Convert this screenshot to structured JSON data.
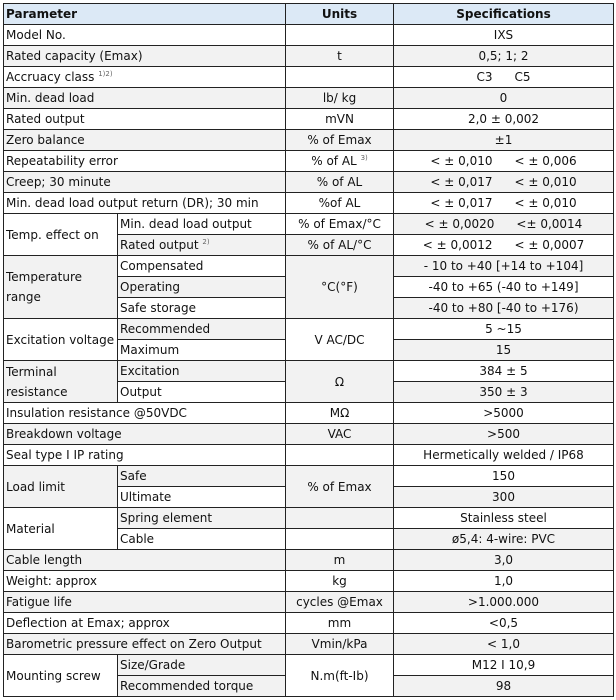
{
  "header": {
    "parameter": "Parameter",
    "units": "Units",
    "specifications": "Specifications"
  },
  "rows": {
    "model": {
      "param": "Model No.",
      "units": "",
      "spec": "IXS"
    },
    "capacity": {
      "param": "Rated capacity (Emax)",
      "units": "t",
      "spec": "0,5; 1;  2"
    },
    "accuracy": {
      "param": "Accruacy class",
      "sup": "1)2)",
      "units": "",
      "spec_c3": "C3",
      "spec_c5": "C5"
    },
    "min_dead_load": {
      "param": "Min. dead load",
      "units": "lb/ kg",
      "spec": "0"
    },
    "rated_output": {
      "param": "Rated output",
      "units": "mVN",
      "spec": "2,0 ± 0,002"
    },
    "zero_balance": {
      "param": "Zero balance",
      "units": "% of Emax",
      "spec": "±1"
    },
    "repeatability": {
      "param": "Repeatability error",
      "units": "% of AL",
      "units_sup": "3)",
      "spec_c3": "< ± 0,010",
      "spec_c5": "< ± 0,006"
    },
    "creep": {
      "param": "Creep; 30 minute",
      "units": "% of AL",
      "spec_c3": "< ± 0,017",
      "spec_c5": "< ± 0,010"
    },
    "dr": {
      "param": "Min. dead load output return (DR); 30 min",
      "units": "%of AL",
      "spec_c3": "< ± 0,017",
      "spec_c5": "< ± 0,010"
    },
    "temp_effect": {
      "param": "Temp. effect on",
      "sub1": {
        "label": "Min. dead load output",
        "units": "% of Emax/°C",
        "spec_c3": "< ±  0,0020",
        "spec_c5": "<±  0,0014"
      },
      "sub2": {
        "label": "Rated output",
        "sup": "2)",
        "units": "% of AL/°C",
        "spec_c3": "< ±  0,0012",
        "spec_c5": "< ± 0,0007"
      }
    },
    "temp_range": {
      "param": "Temperature range",
      "units": "°C(°F)",
      "sub1": {
        "label": "Compensated",
        "spec": "- 10 to +40 [+14 to +104]"
      },
      "sub2": {
        "label": "Operating",
        "spec": "-40 to +65 (-40 to +149]"
      },
      "sub3": {
        "label": "Safe storage",
        "spec": "-40 to +80 [-40 to +176)"
      }
    },
    "excitation_voltage": {
      "param": "Excitation voltage",
      "units": "V AC/DC",
      "sub1": {
        "label": "Recommended",
        "spec": "5 ~15"
      },
      "sub2": {
        "label": "Maximum",
        "spec": "15"
      }
    },
    "terminal_resistance": {
      "param": "Terminal resistance",
      "units": "Ω",
      "sub1": {
        "label": "Excitation",
        "spec": "384 ± 5"
      },
      "sub2": {
        "label": "Output",
        "spec": "350 ± 3"
      }
    },
    "insulation": {
      "param": "Insulation resistance @50VDC",
      "units": "MΩ",
      "spec": ">5000"
    },
    "breakdown": {
      "param": "Breakdown voltage",
      "units": "VAC",
      "spec": ">500"
    },
    "seal": {
      "param": "Seal type I IP rating",
      "units": "",
      "spec": "Hermetically welded / IP68"
    },
    "load_limit": {
      "param": "Load limit",
      "units": "% of Emax",
      "sub1": {
        "label": "Safe",
        "spec": "150"
      },
      "sub2": {
        "label": "Ultimate",
        "spec": "300"
      }
    },
    "material": {
      "param": "Material",
      "sub1": {
        "label": "Spring element",
        "units": "",
        "spec": "Stainless steel"
      },
      "sub2": {
        "label": "Cable",
        "units": "",
        "spec": "ø5,4: 4-wire: PVC"
      }
    },
    "cable_length": {
      "param": "Cable length",
      "units": "m",
      "spec": "3,0"
    },
    "weight": {
      "param": "Weight: approx",
      "units": "kg",
      "spec": "1,0"
    },
    "fatigue": {
      "param": "Fatigue life",
      "units": "cycles @Emax",
      "spec": ">1.000.000"
    },
    "deflection": {
      "param": "Deflection at Emax; approx",
      "units": "mm",
      "spec": "<0,5"
    },
    "barometric": {
      "param": "Barometric pressure effect on Zero Output",
      "units": "Vmin/kPa",
      "spec": "< 1,0"
    },
    "mounting": {
      "param": "Mounting screw",
      "units": "N.m(ft-Ib)",
      "sub1": {
        "label": "Size/Grade",
        "spec": "M12 I 10,9"
      },
      "sub2": {
        "label": "Recommended torque",
        "spec": "98"
      }
    }
  }
}
